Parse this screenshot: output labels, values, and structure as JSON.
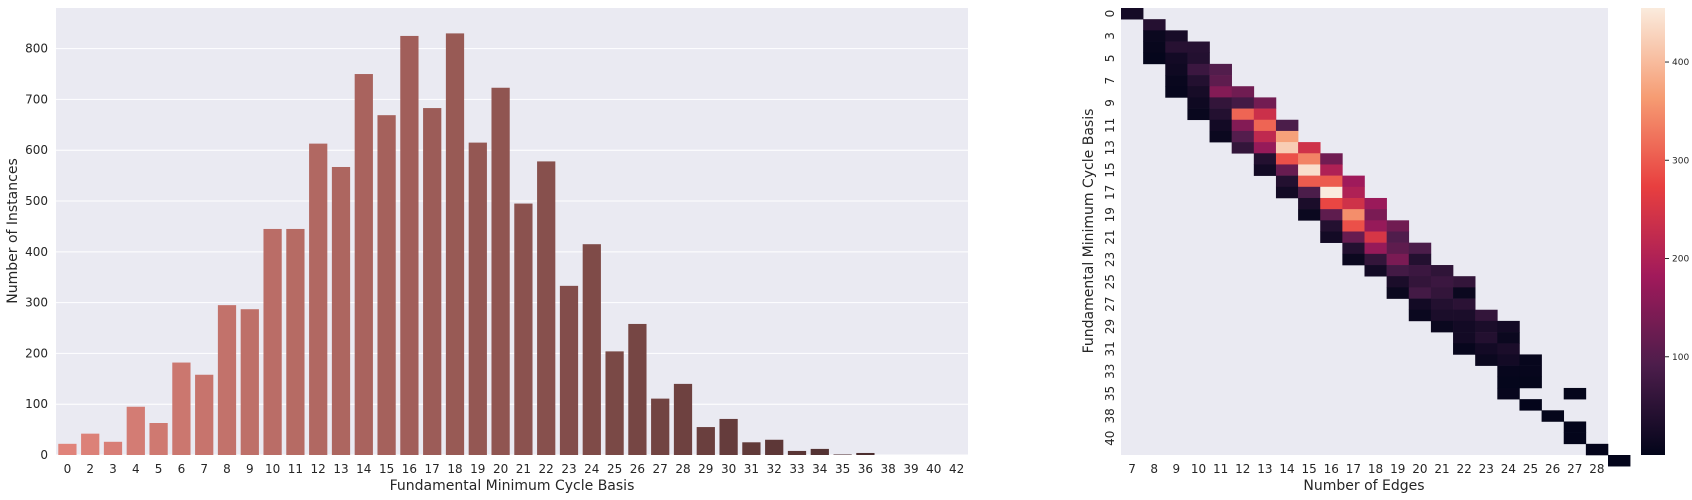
{
  "chart_data": [
    {
      "type": "bar",
      "xlabel": "Fundamental Minimum Cycle Basis",
      "ylabel": "Number of Instances",
      "ylim": [
        0,
        880
      ],
      "yticks": [
        0,
        100,
        200,
        300,
        400,
        500,
        600,
        700,
        800
      ],
      "grid": true,
      "background": "#EAEAF2",
      "palette_start": "#E0837A",
      "palette_end": "#3B2426",
      "categories": [
        "0",
        "2",
        "3",
        "4",
        "5",
        "6",
        "7",
        "8",
        "9",
        "10",
        "11",
        "12",
        "13",
        "14",
        "15",
        "16",
        "17",
        "18",
        "19",
        "20",
        "21",
        "22",
        "23",
        "24",
        "25",
        "26",
        "27",
        "28",
        "29",
        "30",
        "31",
        "32",
        "33",
        "34",
        "35",
        "36",
        "38",
        "39",
        "40",
        "42"
      ],
      "values": [
        22,
        42,
        26,
        95,
        63,
        182,
        158,
        295,
        287,
        445,
        445,
        613,
        567,
        750,
        669,
        825,
        683,
        830,
        615,
        723,
        495,
        578,
        333,
        415,
        204,
        258,
        111,
        140,
        55,
        71,
        25,
        30,
        8,
        12,
        1,
        4,
        0,
        0,
        0,
        0
      ]
    },
    {
      "type": "heatmap",
      "xlabel": "Number of Edges",
      "ylabel": "Fundamental Minimum Cycle Basis",
      "xticks": [
        "7",
        "8",
        "9",
        "10",
        "11",
        "12",
        "13",
        "14",
        "15",
        "16",
        "17",
        "18",
        "19",
        "20",
        "21",
        "22",
        "23",
        "24",
        "25",
        "26",
        "27",
        "28"
      ],
      "yticks": [
        "0",
        "3",
        "5",
        "7",
        "9",
        "11",
        "13",
        "15",
        "17",
        "19",
        "21",
        "23",
        "25",
        "27",
        "29",
        "31",
        "33",
        "35",
        "38",
        "40"
      ],
      "rows": [
        "0",
        "2",
        "3",
        "4",
        "5",
        "6",
        "7",
        "8",
        "9",
        "10",
        "11",
        "12",
        "13",
        "14",
        "15",
        "16",
        "17",
        "18",
        "19",
        "20",
        "21",
        "22",
        "23",
        "24",
        "25",
        "26",
        "27",
        "28",
        "29",
        "30",
        "31",
        "32",
        "33",
        "34",
        "35",
        "36",
        "38",
        "39",
        "40",
        "42"
      ],
      "columns": [
        "7",
        "8",
        "9",
        "10",
        "11",
        "12",
        "13",
        "14",
        "15",
        "16",
        "17",
        "18",
        "19",
        "20",
        "21",
        "22",
        "23",
        "24",
        "25",
        "26",
        "27",
        "28"
      ],
      "colorbar_ticks": [
        100,
        200,
        300,
        400
      ],
      "vmin": 0,
      "vmax": 455,
      "cells": [
        [
          0,
          0,
          22
        ],
        [
          1,
          1,
          42
        ],
        [
          2,
          1,
          10
        ],
        [
          2,
          2,
          26
        ],
        [
          3,
          1,
          6
        ],
        [
          3,
          2,
          45
        ],
        [
          3,
          3,
          44
        ],
        [
          4,
          1,
          3
        ],
        [
          4,
          2,
          20
        ],
        [
          4,
          3,
          40
        ],
        [
          5,
          2,
          15
        ],
        [
          5,
          3,
          70
        ],
        [
          5,
          4,
          97
        ],
        [
          6,
          2,
          8
        ],
        [
          6,
          3,
          40
        ],
        [
          6,
          4,
          110
        ],
        [
          7,
          2,
          5
        ],
        [
          7,
          3,
          25
        ],
        [
          7,
          4,
          150
        ],
        [
          7,
          5,
          130
        ],
        [
          8,
          3,
          15
        ],
        [
          8,
          4,
          60
        ],
        [
          8,
          5,
          80
        ],
        [
          8,
          6,
          132
        ],
        [
          9,
          3,
          8
        ],
        [
          9,
          4,
          40
        ],
        [
          9,
          5,
          310
        ],
        [
          9,
          6,
          236
        ],
        [
          10,
          4,
          20
        ],
        [
          10,
          5,
          150
        ],
        [
          10,
          6,
          310
        ],
        [
          10,
          7,
          90
        ],
        [
          11,
          4,
          10
        ],
        [
          11,
          5,
          100
        ],
        [
          11,
          6,
          220
        ],
        [
          11,
          7,
          370
        ],
        [
          12,
          5,
          60
        ],
        [
          12,
          6,
          170
        ],
        [
          12,
          7,
          420
        ],
        [
          12,
          8,
          240
        ],
        [
          13,
          6,
          40
        ],
        [
          13,
          7,
          290
        ],
        [
          13,
          8,
          340
        ],
        [
          13,
          9,
          130
        ],
        [
          14,
          6,
          20
        ],
        [
          14,
          7,
          120
        ],
        [
          14,
          8,
          440
        ],
        [
          14,
          9,
          200
        ],
        [
          15,
          7,
          40
        ],
        [
          15,
          8,
          300
        ],
        [
          15,
          9,
          300
        ],
        [
          15,
          10,
          180
        ],
        [
          16,
          7,
          20
        ],
        [
          16,
          8,
          90
        ],
        [
          16,
          9,
          455
        ],
        [
          16,
          10,
          200
        ],
        [
          17,
          8,
          30
        ],
        [
          17,
          9,
          280
        ],
        [
          17,
          10,
          240
        ],
        [
          17,
          11,
          175
        ],
        [
          18,
          8,
          10
        ],
        [
          18,
          9,
          110
        ],
        [
          18,
          10,
          350
        ],
        [
          18,
          11,
          140
        ],
        [
          19,
          9,
          40
        ],
        [
          19,
          10,
          290
        ],
        [
          19,
          11,
          170
        ],
        [
          19,
          12,
          130
        ],
        [
          20,
          9,
          20
        ],
        [
          20,
          10,
          120
        ],
        [
          20,
          11,
          250
        ],
        [
          20,
          12,
          95
        ],
        [
          21,
          10,
          40
        ],
        [
          21,
          11,
          170
        ],
        [
          21,
          12,
          110
        ],
        [
          21,
          13,
          90
        ],
        [
          22,
          10,
          10
        ],
        [
          22,
          11,
          60
        ],
        [
          22,
          12,
          140
        ],
        [
          22,
          13,
          40
        ],
        [
          23,
          11,
          20
        ],
        [
          23,
          12,
          80
        ],
        [
          23,
          13,
          70
        ],
        [
          23,
          14,
          55
        ],
        [
          24,
          12,
          30
        ],
        [
          24,
          13,
          60
        ],
        [
          24,
          14,
          70
        ],
        [
          24,
          15,
          60
        ],
        [
          25,
          12,
          10
        ],
        [
          25,
          13,
          80
        ],
        [
          25,
          14,
          60
        ],
        [
          25,
          15,
          10
        ],
        [
          26,
          13,
          20
        ],
        [
          26,
          14,
          40
        ],
        [
          26,
          15,
          50
        ],
        [
          27,
          13,
          10
        ],
        [
          27,
          14,
          30
        ],
        [
          27,
          15,
          30
        ],
        [
          27,
          16,
          60
        ],
        [
          28,
          14,
          10
        ],
        [
          28,
          15,
          20
        ],
        [
          28,
          16,
          30
        ],
        [
          28,
          17,
          20
        ],
        [
          29,
          15,
          20
        ],
        [
          29,
          16,
          40
        ],
        [
          29,
          17,
          10
        ],
        [
          30,
          15,
          5
        ],
        [
          30,
          16,
          20
        ],
        [
          30,
          17,
          30
        ],
        [
          31,
          16,
          10
        ],
        [
          31,
          17,
          20
        ],
        [
          31,
          18,
          5
        ],
        [
          32,
          17,
          5
        ],
        [
          32,
          18,
          5
        ],
        [
          33,
          17,
          3
        ],
        [
          33,
          18,
          2
        ],
        [
          34,
          17,
          5
        ],
        [
          34,
          20,
          2
        ],
        [
          35,
          18,
          1
        ],
        [
          36,
          19,
          2
        ],
        [
          37,
          20,
          1
        ],
        [
          38,
          20,
          1
        ],
        [
          39,
          21,
          1
        ],
        [
          40,
          22,
          1
        ]
      ]
    }
  ]
}
